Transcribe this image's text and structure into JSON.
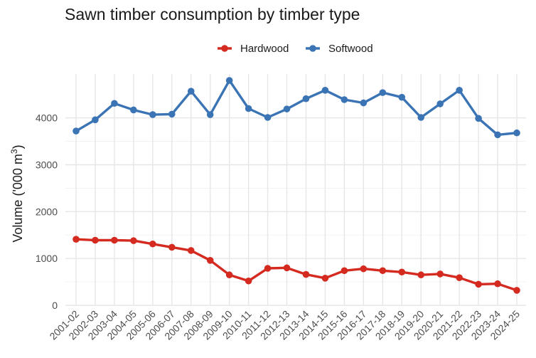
{
  "chart_data": {
    "type": "line",
    "title": "Sawn timber consumption by timber type",
    "ylabel_main": "Volume ('000 m",
    "ylabel_sup": "3",
    "ylabel_close": ")",
    "xlabel": "",
    "ylim": [
      0,
      4800
    ],
    "yticks": [
      0,
      1000,
      2000,
      3000,
      4000
    ],
    "ytick_labels": [
      "0",
      "1000",
      "2000",
      "3000",
      "4000"
    ],
    "grid": true,
    "legend_position": "top",
    "categories": [
      "2001-02",
      "2002-03",
      "2003-04",
      "2004-05",
      "2005-06",
      "2006-07",
      "2007-08",
      "2008-09",
      "2009-10",
      "2010-11",
      "2011-12",
      "2012-13",
      "2013-14",
      "2014-15",
      "2015-16",
      "2016-17",
      "2017-18",
      "2018-19",
      "2019-20",
      "2020-21",
      "2021-22",
      "2022-23",
      "2023-24",
      "2024-25"
    ],
    "series": [
      {
        "name": "Hardwood",
        "color": "#d42a20",
        "values": [
          1410,
          1390,
          1390,
          1380,
          1310,
          1240,
          1170,
          960,
          650,
          520,
          790,
          800,
          660,
          580,
          740,
          780,
          740,
          710,
          650,
          670,
          590,
          450,
          460,
          320
        ]
      },
      {
        "name": "Softwood",
        "color": "#3b74b5",
        "values": [
          3720,
          3960,
          4310,
          4170,
          4070,
          4080,
          4570,
          4070,
          4800,
          4200,
          4010,
          4190,
          4410,
          4590,
          4390,
          4320,
          4540,
          4440,
          4010,
          4300,
          4590,
          3990,
          3640,
          3680
        ]
      }
    ]
  }
}
